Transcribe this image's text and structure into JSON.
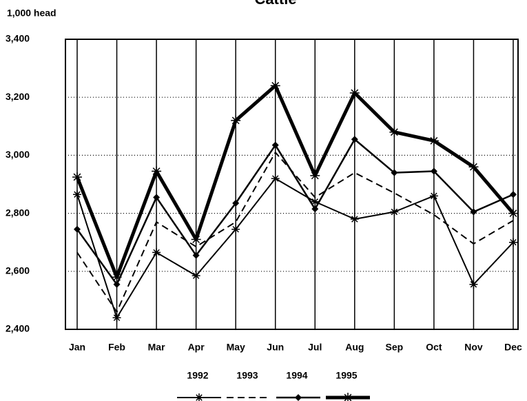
{
  "chart_data": {
    "type": "line",
    "title": "Cattle",
    "y_axis_label": "1,000 head",
    "categories": [
      "Jan",
      "Feb",
      "Mar",
      "Apr",
      "May",
      "Jun",
      "Jul",
      "Aug",
      "Sep",
      "Oct",
      "Nov",
      "Dec"
    ],
    "ylim": [
      2400,
      3400
    ],
    "yticks": [
      {
        "value": 2400,
        "label": "2,400"
      },
      {
        "value": 2600,
        "label": "2,600"
      },
      {
        "value": 2800,
        "label": "2,800"
      },
      {
        "value": 3000,
        "label": "3,000"
      },
      {
        "value": 3200,
        "label": "3,200"
      },
      {
        "value": 3400,
        "label": "3,400"
      }
    ],
    "grid": true,
    "series": [
      {
        "name": "1992",
        "color": "#000000",
        "width": 2,
        "dash": false,
        "marker": "star",
        "values": [
          2865,
          2440,
          2665,
          2585,
          2745,
          2920,
          2840,
          2780,
          2805,
          2860,
          2555,
          2700
        ]
      },
      {
        "name": "1993",
        "color": "#000000",
        "width": 2,
        "dash": true,
        "marker": "none",
        "values": [
          2665,
          2460,
          2770,
          2685,
          2770,
          3010,
          2855,
          2940,
          2870,
          2795,
          2695,
          2775
        ]
      },
      {
        "name": "1994",
        "color": "#000000",
        "width": 2.5,
        "dash": false,
        "marker": "diamond",
        "values": [
          2745,
          2555,
          2855,
          2655,
          2835,
          3035,
          2815,
          3055,
          2940,
          2945,
          2805,
          2865
        ]
      },
      {
        "name": "1995",
        "color": "#000000",
        "width": 5,
        "dash": false,
        "marker": "star",
        "values": [
          2925,
          2580,
          2945,
          2710,
          3120,
          3240,
          2930,
          3215,
          3080,
          3050,
          2960,
          2800
        ]
      }
    ]
  }
}
